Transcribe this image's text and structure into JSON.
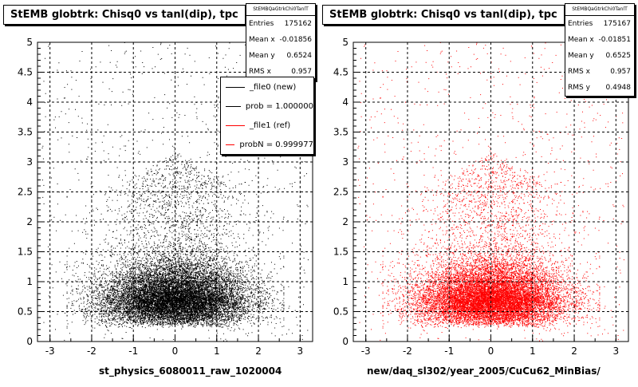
{
  "chart_data": [
    {
      "type": "scatter",
      "title": "StEMB globtrk: Chisq0 vs tanl(dip), tpc",
      "xlabel": "st_physics_6080011_raw_1020004",
      "ylabel": "",
      "xlim": [
        -3.3,
        3.3
      ],
      "ylim": [
        0,
        5
      ],
      "x_ticks": [
        "-3",
        "-2",
        "-1",
        "0",
        "1",
        "2",
        "3"
      ],
      "y_ticks": [
        "0",
        "0.5",
        "1",
        "1.5",
        "2",
        "2.5",
        "3",
        "3.5",
        "4",
        "4.5",
        "5"
      ],
      "grid": true,
      "point_color": "#000000",
      "stats": {
        "name": "StEMBQaGtrkChi0TanlT",
        "rows": [
          {
            "label": "Entries",
            "value": "175162"
          },
          {
            "label": "Mean x",
            "value": "-0.01856"
          },
          {
            "label": "Mean y",
            "value": "0.6524"
          },
          {
            "label": "RMS x",
            "value": "0.957"
          }
        ]
      },
      "legend": {
        "placement": "top-right",
        "entries": [
          {
            "label": "_file0 (new)",
            "color": "#000000"
          },
          {
            "label": "prob = 1.000000",
            "color": "#000000"
          },
          {
            "label": "_file1 (ref)",
            "color": "#ff0000"
          },
          {
            "label": "probN = 0.999977",
            "color": "#ff0000"
          }
        ]
      }
    },
    {
      "type": "scatter",
      "title": "StEMB globtrk: Chisq0 vs tanl(dip), tpc",
      "xlabel": "new/daq_sl302/year_2005/CuCu62_MinBias/",
      "ylabel": "",
      "xlim": [
        -3.3,
        3.3
      ],
      "ylim": [
        0,
        5
      ],
      "x_ticks": [
        "-3",
        "-2",
        "-1",
        "0",
        "1",
        "2",
        "3"
      ],
      "y_ticks": [
        "0",
        "0.5",
        "1",
        "1.5",
        "2",
        "2.5",
        "3",
        "3.5",
        "4",
        "4.5",
        "5"
      ],
      "grid": true,
      "point_color": "#ff0000",
      "stats": {
        "name": "StEMBQaGtrkChi0TanlT",
        "rows": [
          {
            "label": "Entries",
            "value": "175167"
          },
          {
            "label": "Mean x",
            "value": "-0.01851"
          },
          {
            "label": "Mean y",
            "value": "0.6525"
          },
          {
            "label": "RMS x",
            "value": "0.957"
          },
          {
            "label": "RMS y",
            "value": "0.4948"
          }
        ]
      }
    }
  ]
}
